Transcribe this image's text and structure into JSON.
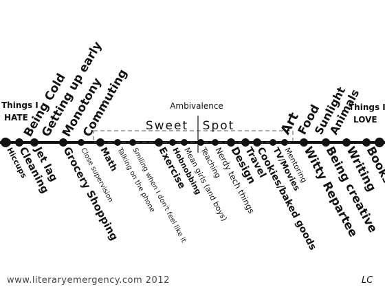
{
  "title": "Ambivalence",
  "end_left": [
    "Things I",
    "HATE"
  ],
  "end_right": [
    "Things I",
    "LOVE"
  ],
  "sweet_spot": [
    "Sweet",
    "Spot"
  ],
  "footer": "www.literaryemergency.com 2012",
  "signature": "LC",
  "above_left": [
    "Being Cold",
    "Getting up early",
    "Monotony",
    "Commuting"
  ],
  "above_right": [
    "Art",
    "Food",
    "Sunlight",
    "Animals"
  ],
  "below": [
    "Hiccups",
    "Cleaning",
    "Jet lag",
    "Grocery Shopping",
    "Close supervision",
    "Math",
    "Talking on the phone",
    "Smiling when I don't feel like it",
    "Exercise",
    "Hobnobbing",
    "Mean girls (and boys)",
    "Teaching",
    "Nerdy tech things",
    "Design",
    "Travel",
    "Cookies/baked goods",
    "TV/Movies",
    "Mentoring",
    "Witty Repartee",
    "Being creative",
    "Writing",
    "Books"
  ],
  "colors": {
    "ink": "#111111",
    "dash": "#555555",
    "footer": "#444444"
  }
}
